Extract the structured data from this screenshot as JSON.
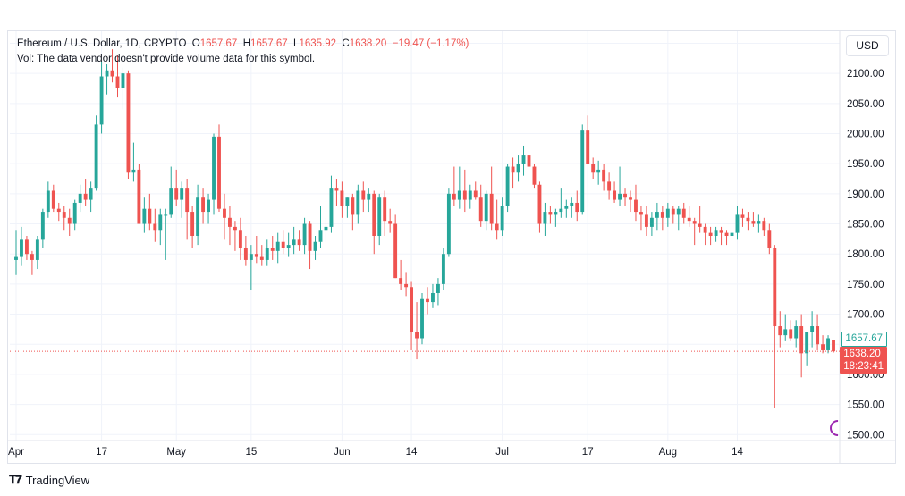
{
  "header": {
    "symbol": "Ethereum / U.S. Dollar, 1D, CRYPTO",
    "o_label": "O",
    "o_value": "1657.67",
    "h_label": "H",
    "h_value": "1657.67",
    "l_label": "L",
    "l_value": "1635.92",
    "c_label": "C",
    "c_value": "1638.20",
    "change": "−19.47 (−1.17%)",
    "volume_note": "Vol: The data vendor doesn't provide volume data for this symbol."
  },
  "currency": "USD",
  "price_tags": {
    "open": "1657.67",
    "close": "1638.20",
    "countdown": "18:23:41"
  },
  "brand": "TradingView",
  "colors": {
    "up": "#26a69a",
    "down": "#ef5350",
    "grid": "#f0f3fa",
    "axis_text": "#131722"
  },
  "chart_data": {
    "type": "candlestick",
    "title": "Ethereum / U.S. Dollar, 1D, CRYPTO",
    "ylim": [
      1490,
      2170
    ],
    "y_ticks": [
      1500,
      1550,
      1600,
      1650,
      1700,
      1750,
      1800,
      1850,
      1900,
      1950,
      2000,
      2050,
      2100,
      2150
    ],
    "y_tick_labels": [
      "1500.00",
      "1550.00",
      "1600.00",
      "1650.00",
      "1700.00",
      "1750.00",
      "1800.00",
      "1850.00",
      "1900.00",
      "1950.00",
      "2000.00",
      "2050.00",
      "2100.00",
      "2150.00"
    ],
    "x_tick_labels": [
      {
        "label": "Apr",
        "idx": 0
      },
      {
        "label": "17",
        "idx": 16
      },
      {
        "label": "May",
        "idx": 30
      },
      {
        "label": "15",
        "idx": 44
      },
      {
        "label": "Jun",
        "idx": 61
      },
      {
        "label": "14",
        "idx": 74
      },
      {
        "label": "Jul",
        "idx": 91
      },
      {
        "label": "17",
        "idx": 107
      },
      {
        "label": "Aug",
        "idx": 122
      },
      {
        "label": "14",
        "idx": 135
      }
    ],
    "candles": [
      [
        1790,
        1840,
        1765,
        1795
      ],
      [
        1795,
        1845,
        1780,
        1825
      ],
      [
        1825,
        1830,
        1790,
        1800
      ],
      [
        1800,
        1805,
        1765,
        1790
      ],
      [
        1790,
        1830,
        1775,
        1825
      ],
      [
        1825,
        1875,
        1810,
        1870
      ],
      [
        1870,
        1920,
        1860,
        1905
      ],
      [
        1905,
        1915,
        1870,
        1875
      ],
      [
        1875,
        1885,
        1855,
        1870
      ],
      [
        1870,
        1880,
        1840,
        1860
      ],
      [
        1860,
        1875,
        1830,
        1850
      ],
      [
        1850,
        1890,
        1840,
        1885
      ],
      [
        1885,
        1915,
        1870,
        1900
      ],
      [
        1900,
        1925,
        1880,
        1890
      ],
      [
        1890,
        1920,
        1870,
        1910
      ],
      [
        1910,
        2030,
        1905,
        2015
      ],
      [
        2015,
        2120,
        2000,
        2095
      ],
      [
        2095,
        2115,
        2065,
        2105
      ],
      [
        2105,
        2140,
        2085,
        2095
      ],
      [
        2095,
        2130,
        2060,
        2075
      ],
      [
        2075,
        2110,
        2040,
        2100
      ],
      [
        2100,
        2105,
        1925,
        1935
      ],
      [
        1935,
        1985,
        1920,
        1940
      ],
      [
        1940,
        1950,
        1850,
        1850
      ],
      [
        1850,
        1895,
        1835,
        1875
      ],
      [
        1875,
        1900,
        1840,
        1850
      ],
      [
        1850,
        1875,
        1820,
        1840
      ],
      [
        1840,
        1875,
        1815,
        1865
      ],
      [
        1865,
        1875,
        1790,
        1865
      ],
      [
        1865,
        1945,
        1860,
        1910
      ],
      [
        1910,
        1940,
        1880,
        1890
      ],
      [
        1890,
        1920,
        1860,
        1910
      ],
      [
        1910,
        1925,
        1825,
        1870
      ],
      [
        1870,
        1880,
        1810,
        1830
      ],
      [
        1830,
        1915,
        1815,
        1895
      ],
      [
        1895,
        1910,
        1850,
        1870
      ],
      [
        1870,
        1900,
        1850,
        1890
      ],
      [
        1890,
        2000,
        1865,
        1995
      ],
      [
        1995,
        2015,
        1870,
        1875
      ],
      [
        1875,
        1900,
        1825,
        1860
      ],
      [
        1860,
        1880,
        1815,
        1845
      ],
      [
        1845,
        1855,
        1805,
        1840
      ],
      [
        1840,
        1860,
        1790,
        1810
      ],
      [
        1810,
        1830,
        1780,
        1790
      ],
      [
        1790,
        1815,
        1740,
        1800
      ],
      [
        1800,
        1830,
        1785,
        1795
      ],
      [
        1795,
        1815,
        1780,
        1790
      ],
      [
        1790,
        1825,
        1780,
        1810
      ],
      [
        1810,
        1830,
        1790,
        1805
      ],
      [
        1805,
        1835,
        1785,
        1820
      ],
      [
        1820,
        1840,
        1800,
        1810
      ],
      [
        1810,
        1835,
        1795,
        1815
      ],
      [
        1815,
        1845,
        1800,
        1825
      ],
      [
        1825,
        1840,
        1805,
        1815
      ],
      [
        1815,
        1860,
        1800,
        1850
      ],
      [
        1850,
        1855,
        1775,
        1805
      ],
      [
        1805,
        1830,
        1790,
        1820
      ],
      [
        1820,
        1880,
        1810,
        1840
      ],
      [
        1840,
        1860,
        1820,
        1845
      ],
      [
        1845,
        1930,
        1835,
        1910
      ],
      [
        1910,
        1925,
        1880,
        1905
      ],
      [
        1905,
        1920,
        1860,
        1880
      ],
      [
        1880,
        1895,
        1860,
        1895
      ],
      [
        1895,
        1900,
        1840,
        1865
      ],
      [
        1865,
        1915,
        1850,
        1905
      ],
      [
        1905,
        1920,
        1870,
        1890
      ],
      [
        1890,
        1910,
        1870,
        1900
      ],
      [
        1900,
        1905,
        1800,
        1830
      ],
      [
        1830,
        1900,
        1815,
        1895
      ],
      [
        1895,
        1905,
        1830,
        1855
      ],
      [
        1855,
        1875,
        1835,
        1850
      ],
      [
        1850,
        1865,
        1760,
        1760
      ],
      [
        1760,
        1790,
        1740,
        1750
      ],
      [
        1750,
        1770,
        1730,
        1745
      ],
      [
        1745,
        1755,
        1640,
        1670
      ],
      [
        1670,
        1720,
        1625,
        1660
      ],
      [
        1660,
        1735,
        1650,
        1725
      ],
      [
        1725,
        1745,
        1700,
        1720
      ],
      [
        1720,
        1750,
        1710,
        1735
      ],
      [
        1735,
        1760,
        1715,
        1750
      ],
      [
        1750,
        1810,
        1740,
        1800
      ],
      [
        1800,
        1910,
        1795,
        1900
      ],
      [
        1900,
        1945,
        1880,
        1890
      ],
      [
        1890,
        1945,
        1875,
        1905
      ],
      [
        1905,
        1940,
        1870,
        1890
      ],
      [
        1890,
        1915,
        1875,
        1905
      ],
      [
        1905,
        1920,
        1890,
        1895
      ],
      [
        1895,
        1915,
        1845,
        1855
      ],
      [
        1855,
        1905,
        1840,
        1900
      ],
      [
        1900,
        1945,
        1840,
        1850
      ],
      [
        1850,
        1890,
        1825,
        1840
      ],
      [
        1840,
        1895,
        1830,
        1880
      ],
      [
        1880,
        1950,
        1870,
        1945
      ],
      [
        1945,
        1960,
        1910,
        1935
      ],
      [
        1935,
        1965,
        1920,
        1950
      ],
      [
        1950,
        1980,
        1930,
        1965
      ],
      [
        1965,
        1970,
        1935,
        1945
      ],
      [
        1945,
        1950,
        1910,
        1915
      ],
      [
        1915,
        1920,
        1835,
        1850
      ],
      [
        1850,
        1885,
        1830,
        1870
      ],
      [
        1870,
        1880,
        1850,
        1865
      ],
      [
        1865,
        1875,
        1845,
        1870
      ],
      [
        1870,
        1910,
        1860,
        1875
      ],
      [
        1875,
        1890,
        1860,
        1880
      ],
      [
        1880,
        1895,
        1860,
        1885
      ],
      [
        1885,
        1905,
        1855,
        1870
      ],
      [
        1870,
        2015,
        1865,
        2005
      ],
      [
        2005,
        2030,
        1950,
        1950
      ],
      [
        1950,
        1960,
        1925,
        1935
      ],
      [
        1935,
        1955,
        1915,
        1940
      ],
      [
        1940,
        1950,
        1905,
        1920
      ],
      [
        1920,
        1935,
        1890,
        1905
      ],
      [
        1905,
        1920,
        1885,
        1890
      ],
      [
        1890,
        1945,
        1880,
        1900
      ],
      [
        1900,
        1910,
        1880,
        1895
      ],
      [
        1895,
        1905,
        1870,
        1890
      ],
      [
        1890,
        1915,
        1855,
        1870
      ],
      [
        1870,
        1880,
        1840,
        1865
      ],
      [
        1865,
        1880,
        1830,
        1845
      ],
      [
        1845,
        1870,
        1830,
        1860
      ],
      [
        1860,
        1885,
        1840,
        1870
      ],
      [
        1870,
        1880,
        1840,
        1860
      ],
      [
        1860,
        1885,
        1845,
        1875
      ],
      [
        1875,
        1880,
        1850,
        1865
      ],
      [
        1865,
        1880,
        1840,
        1875
      ],
      [
        1875,
        1885,
        1850,
        1860
      ],
      [
        1860,
        1880,
        1845,
        1855
      ],
      [
        1855,
        1860,
        1815,
        1850
      ],
      [
        1850,
        1880,
        1835,
        1845
      ],
      [
        1845,
        1850,
        1815,
        1835
      ],
      [
        1835,
        1845,
        1815,
        1830
      ],
      [
        1830,
        1845,
        1820,
        1840
      ],
      [
        1840,
        1845,
        1815,
        1835
      ],
      [
        1835,
        1840,
        1815,
        1830
      ],
      [
        1830,
        1845,
        1800,
        1835
      ],
      [
        1835,
        1880,
        1825,
        1865
      ],
      [
        1865,
        1875,
        1845,
        1860
      ],
      [
        1860,
        1870,
        1840,
        1855
      ],
      [
        1855,
        1870,
        1845,
        1850
      ],
      [
        1850,
        1865,
        1835,
        1855
      ],
      [
        1855,
        1860,
        1830,
        1840
      ],
      [
        1840,
        1850,
        1800,
        1810
      ],
      [
        1810,
        1815,
        1545,
        1680
      ],
      [
        1680,
        1705,
        1645,
        1665
      ],
      [
        1665,
        1700,
        1655,
        1675
      ],
      [
        1675,
        1690,
        1655,
        1660
      ],
      [
        1660,
        1690,
        1645,
        1680
      ],
      [
        1680,
        1700,
        1595,
        1635
      ],
      [
        1635,
        1670,
        1615,
        1670
      ],
      [
        1670,
        1705,
        1645,
        1680
      ],
      [
        1680,
        1700,
        1640,
        1650
      ],
      [
        1650,
        1665,
        1635,
        1640
      ],
      [
        1640,
        1665,
        1635,
        1660
      ],
      [
        1657.67,
        1657.67,
        1635.92,
        1638.2
      ]
    ]
  }
}
